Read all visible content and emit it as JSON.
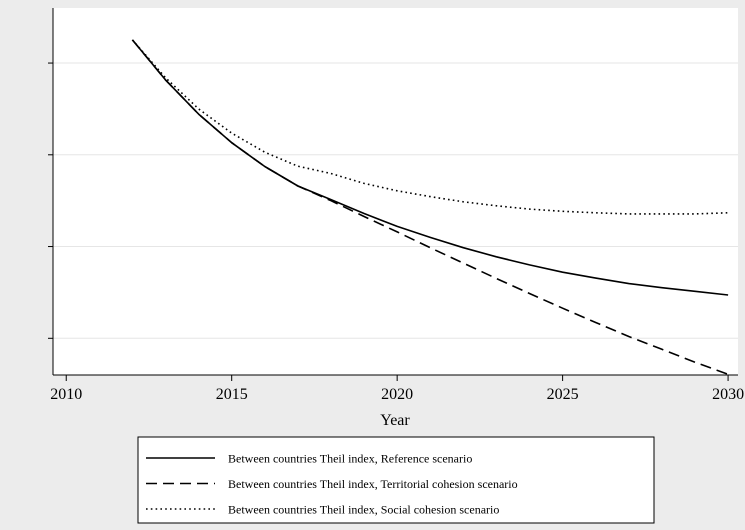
{
  "chart_data": {
    "type": "line",
    "title": "",
    "xlabel": "Year",
    "ylabel": "",
    "xlim": [
      2009.6,
      2030.3
    ],
    "ylim": [
      0.0,
      1.0
    ],
    "x_ticks": [
      "2010",
      "2015",
      "2020",
      "2025",
      "2030"
    ],
    "y_tick_values": [
      0.1,
      0.35,
      0.6,
      0.85,
      1.1
    ],
    "grid": true,
    "legend_position": "bottom",
    "series": [
      {
        "name": "Between countries Theil index, Reference scenario",
        "style": "solid",
        "x": [
          2012,
          2013,
          2014,
          2015,
          2016,
          2017,
          2018,
          2019,
          2020,
          2021,
          2022,
          2023,
          2024,
          2025,
          2026,
          2027,
          2028,
          2029,
          2030
        ],
        "y": [
          0.913,
          0.804,
          0.711,
          0.633,
          0.568,
          0.515,
          0.478,
          0.44,
          0.405,
          0.375,
          0.347,
          0.322,
          0.3,
          0.28,
          0.264,
          0.249,
          0.238,
          0.228,
          0.218
        ]
      },
      {
        "name": "Between countries Theil index, Territorial cohesion scenario",
        "style": "dashed",
        "x": [
          2012,
          2013,
          2014,
          2015,
          2016,
          2017,
          2018,
          2019,
          2020,
          2021,
          2022,
          2023,
          2024,
          2025,
          2026,
          2027,
          2028,
          2029,
          2030
        ],
        "y": [
          0.913,
          0.804,
          0.711,
          0.633,
          0.568,
          0.515,
          0.475,
          0.432,
          0.39,
          0.347,
          0.305,
          0.263,
          0.222,
          0.182,
          0.143,
          0.105,
          0.07,
          0.035,
          0.002
        ]
      },
      {
        "name": "Between countries Theil index, Social cohesion scenario",
        "style": "dotted",
        "x": [
          2012,
          2013,
          2014,
          2015,
          2016,
          2017,
          2018,
          2019,
          2020,
          2021,
          2022,
          2023,
          2024,
          2025,
          2026,
          2027,
          2028,
          2029,
          2030
        ],
        "y": [
          0.913,
          0.81,
          0.725,
          0.659,
          0.607,
          0.569,
          0.549,
          0.522,
          0.502,
          0.486,
          0.472,
          0.461,
          0.452,
          0.446,
          0.442,
          0.439,
          0.439,
          0.439,
          0.442
        ]
      }
    ]
  }
}
